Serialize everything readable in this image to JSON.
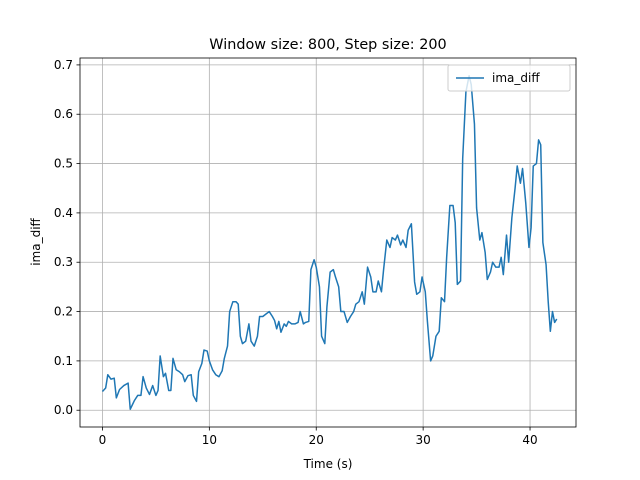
{
  "chart_data": {
    "type": "line",
    "title": "Window size: 800, Step size: 200",
    "xlabel": "Time (s)",
    "ylabel": "ima_diff",
    "xlim": [
      -2.1,
      44.3
    ],
    "ylim": [
      -0.034,
      0.714
    ],
    "xticks": [
      0,
      10,
      20,
      30,
      40
    ],
    "yticks": [
      {
        "value": 0,
        "label": "0.0"
      },
      0.1,
      0.2,
      0.3,
      0.4,
      0.5,
      0.6,
      0.7
    ],
    "grid": true,
    "legend": "upper right",
    "x": [
      0,
      0.3,
      0.5,
      0.8,
      1.1,
      1.3,
      1.6,
      2.0,
      2.4,
      2.6,
      3.0,
      3.3,
      3.6,
      3.8,
      4.1,
      4.4,
      4.7,
      5.0,
      5.2,
      5.4,
      5.7,
      5.9,
      6.2,
      6.4,
      6.6,
      6.9,
      7.2,
      7.5,
      7.7,
      8.0,
      8.3,
      8.5,
      8.8,
      9.0,
      9.3,
      9.5,
      9.8,
      10.0,
      10.3,
      10.6,
      10.9,
      11.2,
      11.4,
      11.7,
      11.9,
      12.2,
      12.5,
      12.7,
      12.9,
      13.1,
      13.4,
      13.7,
      13.9,
      14.2,
      14.5,
      14.7,
      15.0,
      15.3,
      15.6,
      15.9,
      16.1,
      16.3,
      16.5,
      16.7,
      17.0,
      17.2,
      17.4,
      17.7,
      18.0,
      18.3,
      18.5,
      18.8,
      19.0,
      19.3,
      19.5,
      19.8,
      20.0,
      20.3,
      20.5,
      20.8,
      21.0,
      21.3,
      21.6,
      21.8,
      22.1,
      22.3,
      22.6,
      22.9,
      23.2,
      23.5,
      23.7,
      24.0,
      24.3,
      24.5,
      24.8,
      25.1,
      25.3,
      25.6,
      25.8,
      26.1,
      26.3,
      26.6,
      26.9,
      27.1,
      27.4,
      27.6,
      27.9,
      28.1,
      28.4,
      28.6,
      28.9,
      29.2,
      29.4,
      29.7,
      29.9,
      30.2,
      30.4,
      30.7,
      30.9,
      31.2,
      31.5,
      31.7,
      32.0,
      32.2,
      32.5,
      32.8,
      33.0,
      33.2,
      33.5,
      33.7,
      34.0,
      34.3,
      34.5,
      34.8,
      35.0,
      35.3,
      35.5,
      35.8,
      36.0,
      36.3,
      36.5,
      36.8,
      37.1,
      37.3,
      37.5,
      37.8,
      38.0,
      38.3,
      38.6,
      38.8,
      39.1,
      39.3,
      39.6,
      39.9,
      40.1,
      40.3,
      40.6,
      40.8,
      41.0,
      41.2,
      41.5,
      41.7,
      41.9,
      42.1,
      42.3,
      42.5
    ],
    "series": [
      {
        "name": "ima_diff",
        "color": "#1f77b4",
        "values": [
          0.038,
          0.045,
          0.072,
          0.063,
          0.065,
          0.025,
          0.042,
          0.05,
          0.055,
          0.002,
          0.02,
          0.03,
          0.03,
          0.068,
          0.045,
          0.032,
          0.05,
          0.03,
          0.04,
          0.11,
          0.068,
          0.075,
          0.04,
          0.04,
          0.105,
          0.082,
          0.078,
          0.072,
          0.058,
          0.07,
          0.072,
          0.03,
          0.018,
          0.078,
          0.095,
          0.122,
          0.12,
          0.1,
          0.082,
          0.072,
          0.068,
          0.08,
          0.105,
          0.13,
          0.2,
          0.22,
          0.22,
          0.215,
          0.15,
          0.135,
          0.14,
          0.175,
          0.14,
          0.13,
          0.15,
          0.19,
          0.19,
          0.195,
          0.2,
          0.19,
          0.182,
          0.165,
          0.18,
          0.158,
          0.175,
          0.17,
          0.18,
          0.175,
          0.175,
          0.178,
          0.2,
          0.175,
          0.178,
          0.18,
          0.285,
          0.305,
          0.29,
          0.25,
          0.15,
          0.135,
          0.21,
          0.28,
          0.285,
          0.27,
          0.25,
          0.2,
          0.2,
          0.178,
          0.19,
          0.2,
          0.215,
          0.22,
          0.24,
          0.215,
          0.29,
          0.27,
          0.24,
          0.24,
          0.262,
          0.24,
          0.285,
          0.345,
          0.33,
          0.35,
          0.345,
          0.355,
          0.335,
          0.345,
          0.33,
          0.365,
          0.378,
          0.26,
          0.235,
          0.24,
          0.27,
          0.24,
          0.18,
          0.1,
          0.11,
          0.15,
          0.16,
          0.228,
          0.22,
          0.31,
          0.415,
          0.415,
          0.38,
          0.255,
          0.262,
          0.51,
          0.645,
          0.678,
          0.66,
          0.58,
          0.41,
          0.345,
          0.36,
          0.32,
          0.265,
          0.28,
          0.3,
          0.29,
          0.29,
          0.31,
          0.275,
          0.355,
          0.3,
          0.39,
          0.45,
          0.495,
          0.46,
          0.49,
          0.42,
          0.33,
          0.37,
          0.495,
          0.5,
          0.548,
          0.538,
          0.34,
          0.295,
          0.22,
          0.16,
          0.2,
          0.178,
          0.185
        ]
      }
    ]
  }
}
